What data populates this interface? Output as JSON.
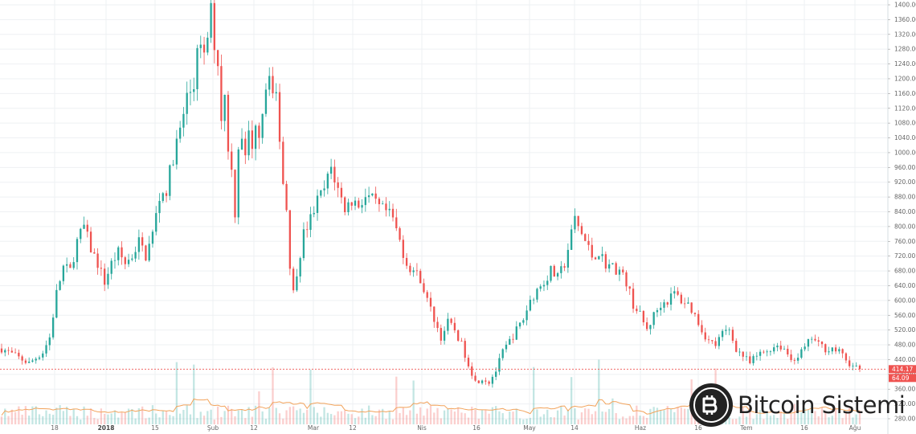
{
  "chart_data": {
    "type": "candlestick",
    "price_axis": {
      "ylim": [
        280,
        1400
      ],
      "tick_labels": [
        "1400.00",
        "1360.00",
        "1320.00",
        "1280.00",
        "1240.00",
        "1200.00",
        "1160.00",
        "1120.00",
        "1080.00",
        "1040.00",
        "1000.00",
        "960.00",
        "920.00",
        "880.00",
        "840.00",
        "800.00",
        "760.00",
        "720.00",
        "680.00",
        "640.00",
        "600.00",
        "560.00",
        "520.00",
        "480.00",
        "440.00",
        "400.00",
        "360.00",
        "320.00",
        "280.00"
      ]
    },
    "time_axis": {
      "tick_labels": [
        "18",
        "2018",
        "15",
        "Şub",
        "12",
        "Mar",
        "12",
        "Nis",
        "16",
        "May",
        "14",
        "Haz",
        "16",
        "Tem",
        "16",
        "Ağu"
      ],
      "bold_labels": [
        "2018"
      ]
    },
    "close_series": [
      [
        0,
        470
      ],
      [
        3,
        455
      ],
      [
        6,
        440
      ],
      [
        8,
        430
      ],
      [
        10,
        445
      ],
      [
        12,
        460
      ],
      [
        14,
        500
      ],
      [
        16,
        620
      ],
      [
        18,
        690
      ],
      [
        20,
        680
      ],
      [
        22,
        760
      ],
      [
        24,
        800
      ],
      [
        26,
        740
      ],
      [
        28,
        700
      ],
      [
        30,
        650
      ],
      [
        32,
        700
      ],
      [
        34,
        730
      ],
      [
        36,
        700
      ],
      [
        38,
        720
      ],
      [
        40,
        760
      ],
      [
        42,
        720
      ],
      [
        44,
        780
      ],
      [
        46,
        880
      ],
      [
        48,
        900
      ],
      [
        50,
        990
      ],
      [
        52,
        1060
      ],
      [
        54,
        1150
      ],
      [
        56,
        1180
      ],
      [
        57,
        1300
      ],
      [
        59,
        1250
      ],
      [
        61,
        1380
      ],
      [
        62,
        1300
      ],
      [
        63,
        1240
      ],
      [
        64,
        1100
      ],
      [
        65,
        1150
      ],
      [
        66,
        1020
      ],
      [
        67,
        950
      ],
      [
        68,
        840
      ],
      [
        69,
        1020
      ],
      [
        70,
        1050
      ],
      [
        71,
        980
      ],
      [
        72,
        1060
      ],
      [
        73,
        1000
      ],
      [
        74,
        1090
      ],
      [
        75,
        1060
      ],
      [
        77,
        1180
      ],
      [
        78,
        1230
      ],
      [
        79,
        1160
      ],
      [
        80,
        1140
      ],
      [
        81,
        1050
      ],
      [
        82,
        920
      ],
      [
        83,
        850
      ],
      [
        84,
        700
      ],
      [
        85,
        620
      ],
      [
        86,
        680
      ],
      [
        88,
        780
      ],
      [
        90,
        820
      ],
      [
        92,
        870
      ],
      [
        94,
        900
      ],
      [
        96,
        960
      ],
      [
        98,
        900
      ],
      [
        100,
        850
      ],
      [
        102,
        870
      ],
      [
        104,
        860
      ],
      [
        106,
        880
      ],
      [
        108,
        870
      ],
      [
        110,
        850
      ],
      [
        112,
        840
      ],
      [
        114,
        820
      ],
      [
        116,
        760
      ],
      [
        118,
        700
      ],
      [
        120,
        680
      ],
      [
        122,
        660
      ],
      [
        124,
        600
      ],
      [
        126,
        550
      ],
      [
        128,
        500
      ],
      [
        130,
        540
      ],
      [
        132,
        520
      ],
      [
        134,
        480
      ],
      [
        136,
        430
      ],
      [
        138,
        380
      ],
      [
        140,
        390
      ],
      [
        142,
        380
      ],
      [
        144,
        410
      ],
      [
        146,
        460
      ],
      [
        148,
        490
      ],
      [
        150,
        520
      ],
      [
        152,
        550
      ],
      [
        154,
        600
      ],
      [
        156,
        630
      ],
      [
        158,
        650
      ],
      [
        160,
        680
      ],
      [
        162,
        660
      ],
      [
        164,
        700
      ],
      [
        166,
        780
      ],
      [
        167,
        820
      ],
      [
        168,
        800
      ],
      [
        170,
        760
      ],
      [
        172,
        720
      ],
      [
        174,
        730
      ],
      [
        176,
        700
      ],
      [
        178,
        690
      ],
      [
        180,
        680
      ],
      [
        182,
        650
      ],
      [
        184,
        590
      ],
      [
        186,
        560
      ],
      [
        188,
        520
      ],
      [
        190,
        560
      ],
      [
        192,
        590
      ],
      [
        194,
        600
      ],
      [
        196,
        620
      ],
      [
        198,
        600
      ],
      [
        200,
        590
      ],
      [
        202,
        560
      ],
      [
        204,
        520
      ],
      [
        206,
        490
      ],
      [
        208,
        480
      ],
      [
        210,
        510
      ],
      [
        212,
        520
      ],
      [
        214,
        470
      ],
      [
        216,
        450
      ],
      [
        218,
        430
      ],
      [
        220,
        450
      ],
      [
        222,
        460
      ],
      [
        224,
        470
      ],
      [
        226,
        480
      ],
      [
        228,
        470
      ],
      [
        230,
        440
      ],
      [
        232,
        450
      ],
      [
        234,
        470
      ],
      [
        236,
        500
      ],
      [
        238,
        480
      ],
      [
        240,
        470
      ],
      [
        242,
        470
      ],
      [
        244,
        460
      ],
      [
        246,
        440
      ],
      [
        248,
        420
      ],
      [
        250,
        414.17
      ]
    ],
    "current_price": 414.17,
    "current_price_label": "414.17",
    "volume_label": "64.09",
    "colors": {
      "up": "#26a69a",
      "down": "#ef5350",
      "volume_ma": "#f2a35b",
      "price_line": "#ef5350",
      "grid": "#eef0f3"
    }
  },
  "watermark": {
    "brand": "Bitcoin Sistemi",
    "icon": "bitcoin-logo-icon"
  }
}
